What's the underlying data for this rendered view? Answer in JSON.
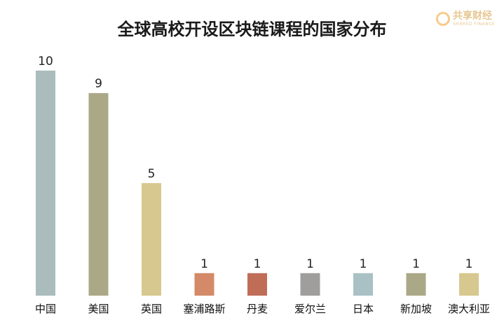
{
  "chart_data": {
    "type": "bar",
    "title": "全球高校开设区块链课程的国家分布",
    "categories": [
      "中国",
      "美国",
      "英国",
      "塞浦路斯",
      "丹麦",
      "爱尔兰",
      "日本",
      "新加坡",
      "澳大利亚"
    ],
    "values": [
      10,
      9,
      5,
      1,
      1,
      1,
      1,
      1,
      1
    ],
    "colors": [
      "#abbcbc",
      "#aaa886",
      "#d7c88f",
      "#d48a68",
      "#c06d58",
      "#a09e9d",
      "#a9c1c4",
      "#aaa886",
      "#d7c88f"
    ],
    "xlabel": "",
    "ylabel": "",
    "ylim": [
      0,
      10
    ],
    "grid": false,
    "legend": "none"
  },
  "watermark": {
    "text_cn": "共享财经",
    "text_en": "SHARED FINANCE"
  }
}
